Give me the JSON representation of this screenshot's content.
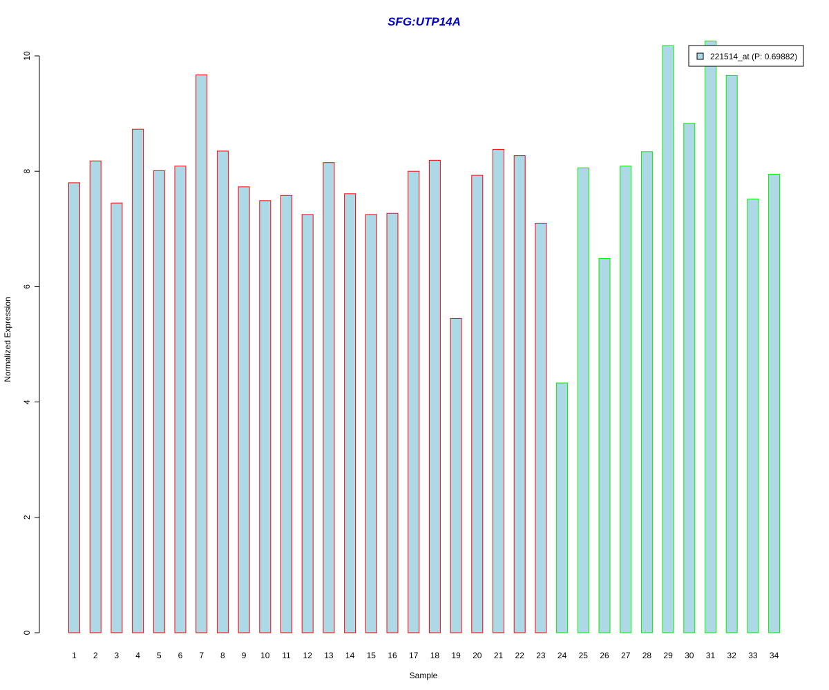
{
  "chart_data": {
    "type": "bar",
    "title": "SFG:UTP14A",
    "xlabel": "Sample",
    "ylabel": "Normalized Expression",
    "categories": [
      "1",
      "2",
      "3",
      "4",
      "5",
      "6",
      "7",
      "8",
      "9",
      "10",
      "11",
      "12",
      "13",
      "14",
      "15",
      "16",
      "17",
      "18",
      "19",
      "20",
      "21",
      "22",
      "23",
      "24",
      "25",
      "26",
      "27",
      "28",
      "29",
      "30",
      "31",
      "32",
      "33",
      "34"
    ],
    "values": [
      7.8,
      8.18,
      7.45,
      8.73,
      8.01,
      8.09,
      9.67,
      8.35,
      7.73,
      7.49,
      7.58,
      7.25,
      8.15,
      7.61,
      7.25,
      7.27,
      8.0,
      8.19,
      5.45,
      7.93,
      8.38,
      8.27,
      7.1,
      4.33,
      8.06,
      6.49,
      8.09,
      8.34,
      10.18,
      8.83,
      10.26,
      9.66,
      7.52,
      7.95
    ],
    "groups": [
      "red",
      "red",
      "red",
      "red",
      "red",
      "red",
      "red",
      "red",
      "red",
      "red",
      "red",
      "red",
      "red",
      "red",
      "red",
      "red",
      "red",
      "red",
      "red",
      "red",
      "red",
      "red",
      "red",
      "green",
      "green",
      "green",
      "green",
      "green",
      "green",
      "green",
      "green",
      "green",
      "green",
      "green"
    ],
    "y_ticks": [
      "0",
      "2",
      "4",
      "6",
      "8",
      "10"
    ],
    "ylim": [
      0,
      10
    ],
    "fill_color": "#add8e6",
    "group_colors": {
      "red": "#ff0000",
      "green": "#00ee00"
    },
    "legend": {
      "label": "221514_at (P: 0.69882)",
      "placement": "top-right"
    }
  }
}
